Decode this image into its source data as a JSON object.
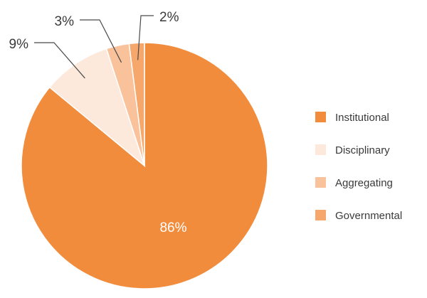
{
  "chart_data": {
    "type": "pie",
    "categories": [
      "Institutional",
      "Disciplinary",
      "Aggregating",
      "Governmental"
    ],
    "values": [
      86,
      9,
      3,
      2
    ],
    "labels": [
      "86%",
      "9%",
      "3%",
      "2%"
    ],
    "colors": [
      "#f28c3d",
      "#fde9dc",
      "#f9c29b",
      "#f6a86c"
    ],
    "legend_position": "right",
    "title": ""
  }
}
